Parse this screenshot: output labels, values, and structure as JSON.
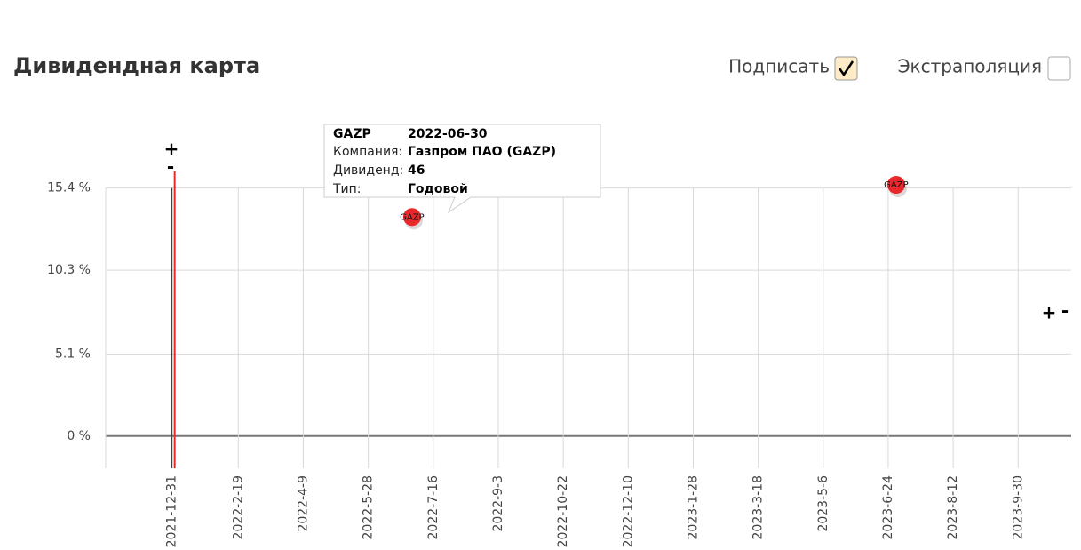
{
  "header": {
    "title": "Дивидендная карта",
    "label_toggle": "Подписать",
    "extrapolation_toggle": "Экстраполяция"
  },
  "zoom_controls": {
    "plus": "+",
    "minus": "-"
  },
  "chart_data": {
    "type": "scatter",
    "series": [
      {
        "name": "GAZP",
        "color": "#e8282b",
        "x": [
          "2022-06-30",
          "2023-06-30"
        ],
        "values": [
          13.6,
          15.6
        ]
      }
    ],
    "xlim": [
      "2021-11-11",
      "2023-11-09"
    ],
    "xticks": [
      "2021-12-31",
      "2022-2-19",
      "2022-4-9",
      "2022-5-28",
      "2022-7-16",
      "2022-9-3",
      "2022-10-22",
      "2022-12-10",
      "2023-1-28",
      "2023-3-18",
      "2023-5-6",
      "2023-6-24",
      "2023-8-12",
      "2023-9-30"
    ],
    "ylim": [
      -2,
      15.6
    ],
    "yticks": [
      {
        "value": 0,
        "label": "0 %"
      },
      {
        "value": 5.1,
        "label": "5.1 %"
      },
      {
        "value": 10.3,
        "label": "10.3 %"
      },
      {
        "value": 15.4,
        "label": "15.4 %"
      }
    ],
    "grid": true,
    "tooltip": {
      "ticker": "GAZP",
      "date": "2022-06-30",
      "rows": [
        [
          "Компания:",
          "Газпром ПАО (GAZP)"
        ],
        [
          "Дивиденд:",
          "46"
        ],
        [
          "Тип:",
          "Годовой"
        ]
      ]
    }
  }
}
